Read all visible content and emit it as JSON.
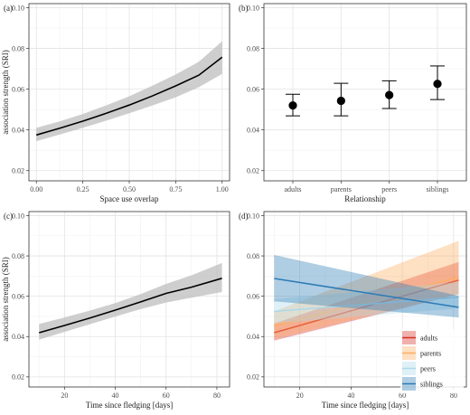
{
  "chart_data": [
    {
      "panel": "(a)",
      "type": "line",
      "xlabel": "Space use overlap",
      "ylabel": "association strength (SRI)",
      "xlim": [
        -0.04,
        1.04
      ],
      "ylim": [
        0.015,
        0.102
      ],
      "xticks": [
        0.0,
        0.25,
        0.5,
        0.75,
        1.0
      ],
      "xtick_labels": [
        "0.00",
        "0.25",
        "0.50",
        "0.75",
        "1.00"
      ],
      "yticks": [
        0.02,
        0.04,
        0.06,
        0.08,
        0.1
      ],
      "ytick_labels": [
        "0.02",
        "0.04",
        "0.06",
        "0.08",
        "0.10"
      ],
      "grid": true,
      "series": [
        {
          "x": [
            0,
            0.125,
            0.25,
            0.375,
            0.5,
            0.625,
            0.75,
            0.875,
            1.0
          ],
          "y": [
            0.0375,
            0.0408,
            0.0443,
            0.0481,
            0.0522,
            0.0567,
            0.0616,
            0.0669,
            0.0757
          ],
          "lower": [
            0.0345,
            0.0377,
            0.041,
            0.0445,
            0.0482,
            0.052,
            0.056,
            0.061,
            0.0675
          ],
          "upper": [
            0.041,
            0.0442,
            0.0478,
            0.052,
            0.0565,
            0.0617,
            0.0672,
            0.0735,
            0.0835
          ]
        }
      ],
      "colors": {
        "line": "#000000",
        "band": "#bdbdbd"
      }
    },
    {
      "panel": "(b)",
      "type": "scatter",
      "xlabel": "Relationship",
      "ylabel": "",
      "categories": [
        "adults",
        "parents",
        "peers",
        "siblings"
      ],
      "values": [
        0.052,
        0.0543,
        0.0571,
        0.0626
      ],
      "lower": [
        0.0469,
        0.0469,
        0.0505,
        0.0549
      ],
      "upper": [
        0.0575,
        0.0629,
        0.0641,
        0.0714
      ],
      "ylim": [
        0.015,
        0.102
      ],
      "yticks": [
        0.02,
        0.04,
        0.06,
        0.08,
        0.1
      ],
      "ytick_labels": [
        "0.02",
        "0.04",
        "0.06",
        "0.08",
        "0.10"
      ],
      "grid": true
    },
    {
      "panel": "(c)",
      "type": "line",
      "xlabel": "Time since fledging [days]",
      "ylabel": "association strength (SRI)",
      "xlim": [
        6,
        85
      ],
      "ylim": [
        0.015,
        0.102
      ],
      "xticks": [
        20,
        40,
        60,
        80
      ],
      "xtick_labels": [
        "20",
        "40",
        "60",
        "80"
      ],
      "yticks": [
        0.02,
        0.04,
        0.06,
        0.08,
        0.1
      ],
      "ytick_labels": [
        "0.02",
        "0.04",
        "0.06",
        "0.08",
        "0.10"
      ],
      "grid": true,
      "series": [
        {
          "x": [
            10,
            20,
            30,
            40,
            50,
            60,
            70,
            82
          ],
          "y": [
            0.0419,
            0.0455,
            0.0492,
            0.0531,
            0.0572,
            0.0614,
            0.0645,
            0.0689
          ],
          "lower": [
            0.0385,
            0.0423,
            0.0461,
            0.0499,
            0.0536,
            0.0569,
            0.0593,
            0.0621
          ],
          "upper": [
            0.0462,
            0.0495,
            0.0529,
            0.0566,
            0.0611,
            0.0661,
            0.0704,
            0.0765
          ]
        }
      ],
      "colors": {
        "line": "#000000",
        "band": "#bdbdbd"
      }
    },
    {
      "panel": "(d)",
      "type": "line",
      "xlabel": "Time since fledging [days]",
      "ylabel": "",
      "xlim": [
        6,
        85
      ],
      "ylim": [
        0.015,
        0.102
      ],
      "xticks": [
        20,
        40,
        60,
        80
      ],
      "xtick_labels": [
        "20",
        "40",
        "60",
        "80"
      ],
      "yticks": [
        0.02,
        0.04,
        0.06,
        0.08,
        0.1
      ],
      "ytick_labels": [
        "0.02",
        "0.04",
        "0.06",
        "0.08",
        "0.10"
      ],
      "grid": true,
      "legend": "bottom-right",
      "series": [
        {
          "name": "adults",
          "color": "#d73027",
          "x": [
            10,
            82
          ],
          "y": [
            0.0419,
            0.068
          ],
          "lower": [
            0.038,
            0.061
          ],
          "upper": [
            0.0465,
            0.077
          ]
        },
        {
          "name": "parents",
          "color": "#fdae61",
          "x": [
            10,
            82
          ],
          "y": [
            0.0452,
            0.0695
          ],
          "lower": [
            0.039,
            0.061
          ],
          "upper": [
            0.0525,
            0.0875
          ]
        },
        {
          "name": "peers",
          "color": "#abd9e9",
          "x": [
            10,
            82
          ],
          "y": [
            0.0525,
            0.0595
          ],
          "lower": [
            0.0465,
            0.054
          ],
          "upper": [
            0.0585,
            0.067
          ]
        },
        {
          "name": "siblings",
          "color": "#2c7bb6",
          "x": [
            10,
            82
          ],
          "y": [
            0.0688,
            0.0545
          ],
          "lower": [
            0.0575,
            0.0495
          ],
          "upper": [
            0.0805,
            0.0602
          ]
        }
      ]
    }
  ]
}
